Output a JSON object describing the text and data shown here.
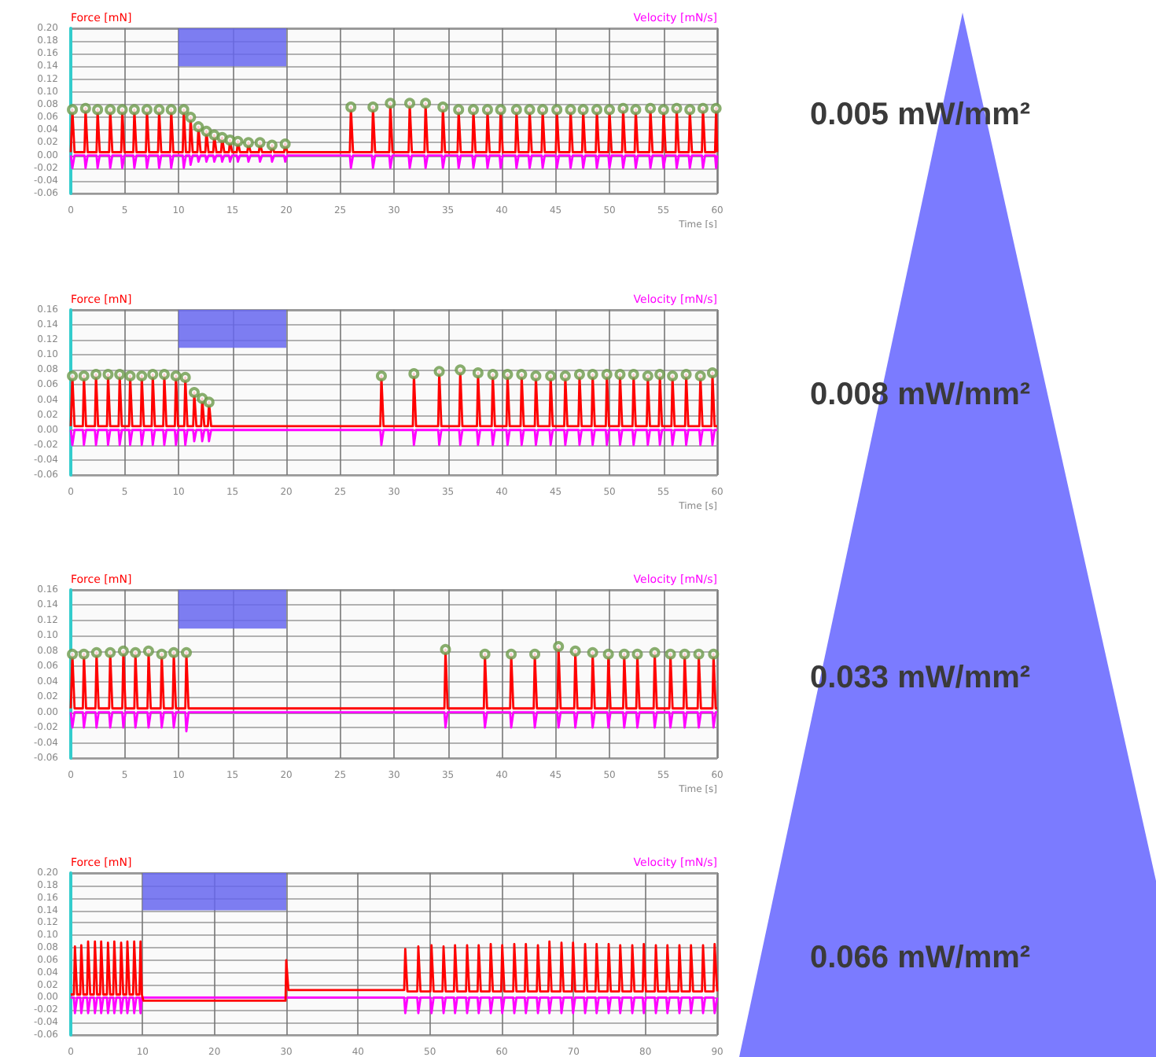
{
  "chart_data": [
    {
      "type": "line",
      "xlabel": "Time [s]",
      "ylabel": "Force [mN]",
      "y2label": "Velocity [mN/s]",
      "annotations": [
        "0.005 mW/mm²"
      ],
      "grid": true,
      "xlim": [
        0,
        60
      ],
      "xticks": [
        0,
        5,
        10,
        15,
        20,
        25,
        30,
        35,
        40,
        45,
        50,
        55,
        60
      ],
      "ylim": [
        -0.06,
        0.2
      ],
      "yticks": [
        {
          "value": -0.06,
          "label": "-0.06"
        },
        {
          "value": -0.04,
          "label": "-0.04"
        },
        {
          "value": -0.02,
          "label": "-0.02"
        },
        {
          "value": 0,
          "label": "0.00"
        },
        {
          "value": 0.02,
          "label": "0.02"
        },
        {
          "value": 0.04,
          "label": "0.04"
        },
        {
          "value": 0.06,
          "label": "0.06"
        },
        {
          "value": 0.08,
          "label": "0.08"
        },
        {
          "value": 0.1,
          "label": "0.10"
        },
        {
          "value": 0.12,
          "label": "0.12"
        },
        {
          "value": 0.14,
          "label": "0.14"
        },
        {
          "value": 0.16,
          "label": "0.16"
        },
        {
          "value": 0.18,
          "label": "0.18"
        },
        {
          "value": 0.2,
          "label": "0.20"
        }
      ],
      "bands": [
        {
          "axis": "x",
          "from": 10,
          "to": 20,
          "color": "#6666ee"
        }
      ],
      "x": [
        0,
        0.05,
        0.15,
        0.35,
        1.27,
        1.37,
        1.57,
        2.39,
        2.49,
        2.69,
        3.56,
        3.66,
        3.86,
        4.68,
        4.78,
        4.98,
        5.8,
        5.9,
        6.1,
        6.97,
        7.07,
        7.27,
        8.1,
        8.2,
        8.4,
        9.22,
        9.32,
        9.52,
        10.39,
        10.49,
        10.69,
        11.02,
        11.12,
        11.32,
        11.75,
        11.85,
        12.05,
        12.49,
        12.59,
        12.79,
        13.22,
        13.32,
        13.52,
        13.95,
        14.05,
        14.25,
        14.68,
        14.78,
        14.98,
        15.41,
        15.51,
        15.71,
        16.39,
        16.49,
        16.69,
        17.46,
        17.56,
        17.76,
        18.58,
        18.68,
        18.88,
        19.8,
        19.9,
        20.1,
        25.9,
        26,
        26.2,
        27.95,
        28.05,
        28.25,
        29.56,
        29.66,
        29.86,
        31.36,
        31.46,
        31.66,
        32.83,
        32.93,
        33.13,
        34.44,
        34.54,
        34.74,
        35.9,
        36,
        36.2,
        37.27,
        37.37,
        37.57,
        38.58,
        38.68,
        38.88,
        39.8,
        39.9,
        40.1,
        41.27,
        41.37,
        41.57,
        42.49,
        42.59,
        42.79,
        43.7,
        43.8,
        44,
        45.02,
        45.12,
        45.32,
        46.29,
        46.39,
        46.59,
        47.46,
        47.56,
        47.76,
        48.73,
        48.83,
        49.03,
        49.9,
        50,
        50.2,
        51.17,
        51.27,
        51.47,
        52.34,
        52.44,
        52.64,
        53.7,
        53.8,
        54,
        54.92,
        55.02,
        55.22,
        56.14,
        56.24,
        56.44,
        57.36,
        57.46,
        57.66,
        58.58,
        58.68,
        58.88,
        59.8,
        59.9,
        60
      ],
      "series": [
        {
          "type": "scatter",
          "color": "#6b9a4a",
          "marker": "circle",
          "x": [
            0.15,
            1.37,
            2.49,
            3.66,
            4.78,
            5.9,
            7.07,
            8.2,
            9.32,
            10.49,
            11.12,
            11.85,
            12.59,
            13.32,
            14.05,
            14.78,
            15.51,
            16.49,
            17.56,
            18.68,
            19.9,
            26,
            28.05,
            29.66,
            31.46,
            32.93,
            34.54,
            36,
            37.37,
            38.68,
            39.9,
            41.37,
            42.59,
            43.8,
            45.12,
            46.39,
            47.56,
            48.83,
            50,
            51.27,
            52.44,
            53.8,
            55.02,
            56.24,
            57.46,
            58.68,
            59.9
          ],
          "values": [
            0.072,
            0.074,
            0.072,
            0.072,
            0.072,
            0.072,
            0.072,
            0.072,
            0.072,
            0.072,
            0.06,
            0.045,
            0.038,
            0.032,
            0.028,
            0.024,
            0.022,
            0.02,
            0.02,
            0.016,
            0.018,
            0.076,
            0.076,
            0.082,
            0.082,
            0.082,
            0.076,
            0.072,
            0.072,
            0.072,
            0.072,
            0.072,
            0.072,
            0.072,
            0.072,
            0.072,
            0.072,
            0.072,
            0.072,
            0.074,
            0.072,
            0.074,
            0.072,
            0.074,
            0.072,
            0.074,
            0.074
          ]
        },
        {
          "color": "#ff0000",
          "values": [
            0.005,
            0.005,
            0.072,
            0.005,
            0.005,
            0.074,
            0.005,
            0.005,
            0.072,
            0.005,
            0.005,
            0.072,
            0.005,
            0.005,
            0.072,
            0.005,
            0.005,
            0.072,
            0.005,
            0.005,
            0.072,
            0.005,
            0.005,
            0.072,
            0.005,
            0.005,
            0.072,
            0.005,
            0.005,
            0.072,
            0.005,
            0.005,
            0.06,
            0.005,
            0.005,
            0.045,
            0.005,
            0.005,
            0.038,
            0.005,
            0.005,
            0.032,
            0.005,
            0.005,
            0.028,
            0.005,
            0.005,
            0.024,
            0.005,
            0.005,
            0.022,
            0.005,
            0.005,
            0.02,
            0.005,
            0.005,
            0.02,
            0.005,
            0.005,
            0.016,
            0.005,
            0.005,
            0.018,
            0.005,
            0.005,
            0.076,
            0.005,
            0.005,
            0.076,
            0.005,
            0.005,
            0.082,
            0.005,
            0.005,
            0.082,
            0.005,
            0.005,
            0.082,
            0.005,
            0.005,
            0.076,
            0.005,
            0.005,
            0.072,
            0.005,
            0.005,
            0.072,
            0.005,
            0.005,
            0.072,
            0.005,
            0.005,
            0.072,
            0.005,
            0.005,
            0.072,
            0.005,
            0.005,
            0.072,
            0.005,
            0.005,
            0.072,
            0.005,
            0.005,
            0.072,
            0.005,
            0.005,
            0.072,
            0.005,
            0.005,
            0.072,
            0.005,
            0.005,
            0.072,
            0.005,
            0.005,
            0.072,
            0.005,
            0.005,
            0.074,
            0.005,
            0.005,
            0.072,
            0.005,
            0.005,
            0.074,
            0.005,
            0.005,
            0.072,
            0.005,
            0.005,
            0.074,
            0.005,
            0.005,
            0.072,
            0.005,
            0.005,
            0.074,
            0.005,
            0.005,
            0.074,
            0.005
          ]
        },
        {
          "color": "#ff00ff",
          "marker": "none",
          "values": [
            0,
            0,
            -0.02,
            0,
            0,
            -0.02,
            0,
            0,
            -0.02,
            0,
            0,
            -0.02,
            0,
            0,
            -0.02,
            0,
            0,
            -0.02,
            0,
            0,
            -0.02,
            0,
            0,
            -0.02,
            0,
            0,
            -0.02,
            0,
            0,
            -0.02,
            0,
            0,
            -0.015,
            0,
            0,
            -0.01,
            0,
            0,
            -0.01,
            0,
            0,
            -0.01,
            0,
            0,
            -0.01,
            0,
            0,
            -0.01,
            0,
            0,
            -0.01,
            0,
            0,
            -0.01,
            0,
            0,
            -0.01,
            0,
            0,
            -0.01,
            0,
            0,
            -0.01,
            0,
            0,
            -0.02,
            0,
            0,
            -0.02,
            0,
            0,
            -0.02,
            0,
            0,
            -0.02,
            0,
            0,
            -0.02,
            0,
            0,
            -0.02,
            0,
            0,
            -0.02,
            0,
            0,
            -0.02,
            0,
            0,
            -0.02,
            0,
            0,
            -0.02,
            0,
            0,
            -0.02,
            0,
            0,
            -0.02,
            0,
            0,
            -0.02,
            0,
            0,
            -0.02,
            0,
            0,
            -0.02,
            0,
            0,
            -0.02,
            0,
            0,
            -0.02,
            0,
            0,
            -0.02,
            0,
            0,
            -0.02,
            0,
            0,
            -0.02,
            0,
            0,
            -0.02,
            0,
            0,
            -0.02,
            0,
            0,
            -0.02,
            0,
            0,
            -0.02,
            0,
            0,
            -0.02,
            0,
            0,
            -0.02,
            0
          ]
        }
      ]
    },
    {
      "type": "line",
      "xlabel": "Time [s]",
      "ylabel": "Force [mN]",
      "y2label": "Velocity [mN/s]",
      "annotations": [
        "0.008 mW/mm²"
      ],
      "grid": true,
      "xlim": [
        0,
        60
      ],
      "xticks": [
        0,
        5,
        10,
        15,
        20,
        25,
        30,
        35,
        40,
        45,
        50,
        55,
        60
      ],
      "ylim": [
        -0.06,
        0.16
      ],
      "yticks": [
        {
          "value": -0.06,
          "label": "-0.06"
        },
        {
          "value": -0.04,
          "label": "-0.04"
        },
        {
          "value": -0.02,
          "label": "-0.02"
        },
        {
          "value": 0,
          "label": "0.00"
        },
        {
          "value": 0.02,
          "label": "0.02"
        },
        {
          "value": 0.04,
          "label": "0.04"
        },
        {
          "value": 0.06,
          "label": "0.06"
        },
        {
          "value": 0.08,
          "label": "0.08"
        },
        {
          "value": 0.1,
          "label": "0.10"
        },
        {
          "value": 0.12,
          "label": "0.12"
        },
        {
          "value": 0.14,
          "label": "0.14"
        },
        {
          "value": 0.16,
          "label": "0.16"
        }
      ],
      "bands": [
        {
          "axis": "x",
          "from": 10,
          "to": 20,
          "color": "#6666ee"
        }
      ],
      "x": [
        0,
        0.05,
        0.15,
        0.35,
        1.12,
        1.22,
        1.42,
        2.24,
        2.34,
        2.54,
        3.36,
        3.46,
        3.66,
        4.44,
        4.54,
        4.74,
        5.41,
        5.51,
        5.71,
        6.49,
        6.59,
        6.79,
        7.51,
        7.61,
        7.81,
        8.58,
        8.68,
        8.88,
        9.66,
        9.76,
        9.96,
        10.53,
        10.63,
        10.83,
        11.36,
        11.46,
        11.66,
        12.1,
        12.2,
        12.4,
        12.73,
        12.83,
        13.03,
        28.73,
        28.83,
        29.03,
        31.75,
        31.85,
        32.05,
        34.1,
        34.2,
        34.4,
        36.05,
        36.15,
        36.35,
        37.7,
        37.8,
        38,
        39.07,
        39.17,
        39.37,
        40.44,
        40.54,
        40.74,
        41.75,
        41.85,
        42.05,
        43.07,
        43.17,
        43.37,
        44.44,
        44.54,
        44.74,
        45.8,
        45.9,
        46.1,
        47.12,
        47.22,
        47.42,
        48.34,
        48.44,
        48.64,
        49.66,
        49.76,
        49.96,
        50.88,
        50.98,
        51.18,
        52.14,
        52.24,
        52.44,
        53.46,
        53.56,
        53.76,
        54.58,
        54.68,
        54.88,
        55.75,
        55.85,
        56.05,
        57.02,
        57.12,
        57.32,
        58.34,
        58.44,
        58.64,
        59.46,
        59.56,
        59.76,
        60
      ],
      "series": [
        {
          "type": "scatter",
          "color": "#6b9a4a",
          "marker": "circle",
          "x": [
            0.15,
            1.22,
            2.34,
            3.46,
            4.54,
            5.51,
            6.59,
            7.61,
            8.68,
            9.76,
            10.63,
            11.46,
            12.2,
            12.83,
            28.83,
            31.85,
            34.2,
            36.15,
            37.8,
            39.17,
            40.54,
            41.85,
            43.17,
            44.54,
            45.9,
            47.22,
            48.44,
            49.76,
            50.98,
            52.24,
            53.56,
            54.68,
            55.85,
            57.12,
            58.44,
            59.56
          ],
          "values": [
            0.072,
            0.072,
            0.074,
            0.074,
            0.074,
            0.072,
            0.072,
            0.074,
            0.074,
            0.072,
            0.07,
            0.05,
            0.042,
            0.037,
            0.072,
            0.075,
            0.078,
            0.08,
            0.076,
            0.074,
            0.074,
            0.074,
            0.072,
            0.072,
            0.072,
            0.074,
            0.074,
            0.074,
            0.074,
            0.074,
            0.072,
            0.074,
            0.072,
            0.074,
            0.072,
            0.076
          ]
        },
        {
          "color": "#ff0000",
          "values": [
            0.005,
            0.005,
            0.072,
            0.005,
            0.005,
            0.072,
            0.005,
            0.005,
            0.074,
            0.005,
            0.005,
            0.074,
            0.005,
            0.005,
            0.074,
            0.005,
            0.005,
            0.072,
            0.005,
            0.005,
            0.072,
            0.005,
            0.005,
            0.074,
            0.005,
            0.005,
            0.074,
            0.005,
            0.005,
            0.072,
            0.005,
            0.005,
            0.07,
            0.005,
            0.005,
            0.05,
            0.005,
            0.005,
            0.042,
            0.005,
            0.005,
            0.037,
            0.005,
            0.005,
            0.072,
            0.005,
            0.005,
            0.075,
            0.005,
            0.005,
            0.078,
            0.005,
            0.005,
            0.08,
            0.005,
            0.005,
            0.076,
            0.005,
            0.005,
            0.074,
            0.005,
            0.005,
            0.074,
            0.005,
            0.005,
            0.074,
            0.005,
            0.005,
            0.072,
            0.005,
            0.005,
            0.072,
            0.005,
            0.005,
            0.072,
            0.005,
            0.005,
            0.074,
            0.005,
            0.005,
            0.074,
            0.005,
            0.005,
            0.074,
            0.005,
            0.005,
            0.074,
            0.005,
            0.005,
            0.074,
            0.005,
            0.005,
            0.072,
            0.005,
            0.005,
            0.074,
            0.005,
            0.005,
            0.072,
            0.005,
            0.005,
            0.074,
            0.005,
            0.005,
            0.072,
            0.005,
            0.005,
            0.076,
            0.005,
            0.005
          ]
        },
        {
          "color": "#ff00ff",
          "marker": "none",
          "values": [
            0,
            0,
            -0.02,
            0,
            0,
            -0.02,
            0,
            0,
            -0.02,
            0,
            0,
            -0.02,
            0,
            0,
            -0.02,
            0,
            0,
            -0.02,
            0,
            0,
            -0.02,
            0,
            0,
            -0.02,
            0,
            0,
            -0.02,
            0,
            0,
            -0.02,
            0,
            0,
            -0.02,
            0,
            0,
            -0.015,
            0,
            0,
            -0.015,
            0,
            0,
            -0.015,
            0,
            0,
            -0.02,
            0,
            0,
            -0.02,
            0,
            0,
            -0.02,
            0,
            0,
            -0.02,
            0,
            0,
            -0.02,
            0,
            0,
            -0.02,
            0,
            0,
            -0.02,
            0,
            0,
            -0.02,
            0,
            0,
            -0.02,
            0,
            0,
            -0.02,
            0,
            0,
            -0.02,
            0,
            0,
            -0.02,
            0,
            0,
            -0.02,
            0,
            0,
            -0.02,
            0,
            0,
            -0.02,
            0,
            0,
            -0.02,
            0,
            0,
            -0.02,
            0,
            0,
            -0.02,
            0,
            0,
            -0.02,
            0,
            0,
            -0.02,
            0,
            0,
            -0.02,
            0,
            0,
            -0.02,
            0,
            0
          ]
        }
      ]
    },
    {
      "type": "line",
      "xlabel": "Time [s]",
      "ylabel": "Force [mN]",
      "y2label": "Velocity [mN/s]",
      "annotations": [
        "0.033 mW/mm²"
      ],
      "grid": true,
      "xlim": [
        0,
        60
      ],
      "xticks": [
        0,
        5,
        10,
        15,
        20,
        25,
        30,
        35,
        40,
        45,
        50,
        55,
        60
      ],
      "ylim": [
        -0.06,
        0.16
      ],
      "yticks": [
        {
          "value": -0.06,
          "label": "-0.06"
        },
        {
          "value": -0.04,
          "label": "-0.04"
        },
        {
          "value": -0.02,
          "label": "-0.02"
        },
        {
          "value": 0,
          "label": "0.00"
        },
        {
          "value": 0.02,
          "label": "0.02"
        },
        {
          "value": 0.04,
          "label": "0.04"
        },
        {
          "value": 0.06,
          "label": "0.06"
        },
        {
          "value": 0.08,
          "label": "0.08"
        },
        {
          "value": 0.1,
          "label": "0.10"
        },
        {
          "value": 0.12,
          "label": "0.12"
        },
        {
          "value": 0.14,
          "label": "0.14"
        },
        {
          "value": 0.16,
          "label": "0.16"
        }
      ],
      "bands": [
        {
          "axis": "x",
          "from": 10,
          "to": 20,
          "color": "#6666ee"
        }
      ],
      "x": [
        0,
        0.05,
        0.15,
        0.35,
        1.12,
        1.22,
        1.42,
        2.29,
        2.39,
        2.59,
        3.56,
        3.66,
        3.86,
        4.78,
        4.88,
        5.08,
        5.9,
        6,
        6.2,
        7.12,
        7.22,
        7.42,
        8.34,
        8.44,
        8.64,
        9.46,
        9.56,
        9.76,
        10.63,
        10.73,
        10.93,
        34.68,
        34.78,
        34.98,
        38.34,
        38.44,
        38.64,
        40.78,
        40.88,
        41.08,
        42.97,
        43.07,
        43.27,
        45.17,
        45.27,
        45.47,
        46.73,
        46.83,
        47.03,
        48.34,
        48.44,
        48.64,
        49.8,
        49.9,
        50.1,
        51.27,
        51.37,
        51.57,
        52.49,
        52.59,
        52.79,
        54.1,
        54.2,
        54.4,
        55.56,
        55.66,
        55.86,
        56.88,
        56.98,
        57.18,
        58.19,
        58.29,
        58.49,
        59.56,
        59.66,
        59.86,
        60
      ],
      "series": [
        {
          "type": "scatter",
          "color": "#6b9a4a",
          "marker": "circle",
          "x": [
            0.15,
            1.22,
            2.39,
            3.66,
            4.88,
            6,
            7.22,
            8.44,
            9.56,
            10.73,
            34.78,
            38.44,
            40.88,
            43.07,
            45.27,
            46.83,
            48.44,
            49.9,
            51.37,
            52.59,
            54.2,
            55.66,
            56.98,
            58.29,
            59.66
          ],
          "values": [
            0.076,
            0.076,
            0.078,
            0.078,
            0.08,
            0.078,
            0.08,
            0.076,
            0.078,
            0.078,
            0.082,
            0.076,
            0.076,
            0.076,
            0.086,
            0.08,
            0.078,
            0.076,
            0.076,
            0.076,
            0.078,
            0.076,
            0.076,
            0.076,
            0.076
          ]
        },
        {
          "color": "#ff0000",
          "values": [
            0.005,
            0.005,
            0.076,
            0.005,
            0.005,
            0.076,
            0.005,
            0.005,
            0.078,
            0.005,
            0.005,
            0.078,
            0.005,
            0.005,
            0.08,
            0.005,
            0.005,
            0.078,
            0.005,
            0.005,
            0.08,
            0.005,
            0.005,
            0.076,
            0.005,
            0.005,
            0.078,
            0.005,
            0.005,
            0.078,
            0.005,
            0.005,
            0.082,
            0.005,
            0.005,
            0.076,
            0.005,
            0.005,
            0.076,
            0.005,
            0.005,
            0.076,
            0.005,
            0.005,
            0.086,
            0.005,
            0.005,
            0.08,
            0.005,
            0.005,
            0.078,
            0.005,
            0.005,
            0.076,
            0.005,
            0.005,
            0.076,
            0.005,
            0.005,
            0.076,
            0.005,
            0.005,
            0.078,
            0.005,
            0.005,
            0.076,
            0.005,
            0.005,
            0.076,
            0.005,
            0.005,
            0.076,
            0.005,
            0.005,
            0.076,
            0.005,
            0.005
          ]
        },
        {
          "color": "#ff00ff",
          "marker": "none",
          "values": [
            0,
            0,
            -0.02,
            0,
            0,
            -0.02,
            0,
            0,
            -0.02,
            0,
            0,
            -0.02,
            0,
            0,
            -0.02,
            0,
            0,
            -0.02,
            0,
            0,
            -0.02,
            0,
            0,
            -0.02,
            0,
            0,
            -0.02,
            0,
            0,
            -0.025,
            0,
            0,
            -0.02,
            0,
            0,
            -0.02,
            0,
            0,
            -0.02,
            0,
            0,
            -0.02,
            0,
            0,
            -0.02,
            0,
            0,
            -0.02,
            0,
            0,
            -0.02,
            0,
            0,
            -0.02,
            0,
            0,
            -0.02,
            0,
            0,
            -0.02,
            0,
            0,
            -0.02,
            0,
            0,
            -0.02,
            0,
            0,
            -0.02,
            0,
            0,
            -0.02,
            0,
            0,
            -0.02,
            0,
            0
          ]
        }
      ]
    },
    {
      "type": "line",
      "ylabel": "Force [mN]",
      "y2label": "Velocity [mN/s]",
      "annotations": [
        "0.066 mW/mm²"
      ],
      "grid": true,
      "xlim": [
        0,
        90
      ],
      "xticks": [
        0,
        10,
        20,
        30,
        40,
        50,
        60,
        70,
        80,
        90
      ],
      "ylim": [
        -0.06,
        0.2
      ],
      "yticks": [
        {
          "value": -0.06,
          "label": "-0.06"
        },
        {
          "value": -0.04,
          "label": "-0.04"
        },
        {
          "value": -0.02,
          "label": "-0.02"
        },
        {
          "value": 0,
          "label": "0.00"
        },
        {
          "value": 0.02,
          "label": "0.02"
        },
        {
          "value": 0.04,
          "label": "0.04"
        },
        {
          "value": 0.06,
          "label": "0.06"
        },
        {
          "value": 0.08,
          "label": "0.08"
        },
        {
          "value": 0.1,
          "label": "0.10"
        },
        {
          "value": 0.12,
          "label": "0.12"
        },
        {
          "value": 0.14,
          "label": "0.14"
        },
        {
          "value": 0.16,
          "label": "0.16"
        },
        {
          "value": 0.18,
          "label": "0.18"
        },
        {
          "value": 0.2,
          "label": "0.20"
        }
      ],
      "bands": [
        {
          "axis": "x",
          "from": 10,
          "to": 30,
          "color": "#6666ee"
        }
      ],
      "x": [
        0,
        0.43,
        0.58,
        0.88,
        1.31,
        1.46,
        1.76,
        2.26,
        2.41,
        2.71,
        3.21,
        3.36,
        3.66,
        4.08,
        4.23,
        4.53,
        5.03,
        5.18,
        5.48,
        5.91,
        6.06,
        6.36,
        6.86,
        7.01,
        7.31,
        7.73,
        7.88,
        8.18,
        8.68,
        8.83,
        9.13,
        9.56,
        9.71,
        9.9,
        10.1,
        29.9,
        30,
        30.3,
        46.42,
        46.57,
        46.87,
        48.24,
        48.39,
        48.69,
        50.07,
        50.22,
        50.52,
        51.75,
        51.9,
        52.2,
        53.35,
        53.5,
        53.8,
        55.03,
        55.18,
        55.48,
        56.64,
        56.79,
        57.09,
        58.32,
        58.47,
        58.77,
        59.92,
        60.07,
        60.37,
        61.6,
        61.75,
        62.05,
        63.21,
        63.36,
        63.66,
        64.89,
        65.04,
        65.34,
        66.49,
        66.64,
        66.94,
        68.17,
        68.32,
        68.62,
        69.78,
        69.93,
        70.23,
        71.46,
        71.61,
        71.91,
        73.06,
        73.21,
        73.51,
        74.74,
        74.89,
        75.19,
        76.35,
        76.5,
        76.8,
        78.03,
        78.18,
        78.48,
        79.63,
        79.78,
        80.08,
        81.31,
        81.46,
        81.76,
        82.92,
        83.07,
        83.37,
        84.59,
        84.74,
        85.04,
        86.2,
        86.35,
        86.65,
        87.88,
        88.03,
        88.33,
        89.49,
        89.64,
        90
      ],
      "series": [
        {
          "color": "#ff0000",
          "marker": "none",
          "values": [
            0.005,
            0.005,
            0.082,
            0.005,
            0.005,
            0.084,
            0.005,
            0.005,
            0.09,
            0.005,
            0.005,
            0.09,
            0.005,
            0.005,
            0.09,
            0.005,
            0.005,
            0.088,
            0.005,
            0.005,
            0.09,
            0.005,
            0.005,
            0.088,
            0.005,
            0.005,
            0.09,
            0.005,
            0.005,
            0.09,
            0.005,
            0.005,
            0.09,
            0.005,
            -0.005,
            -0.005,
            0.06,
            0.012,
            0.012,
            0.078,
            0.01,
            0.01,
            0.082,
            0.01,
            0.01,
            0.084,
            0.01,
            0.01,
            0.082,
            0.01,
            0.01,
            0.084,
            0.01,
            0.01,
            0.084,
            0.01,
            0.01,
            0.084,
            0.01,
            0.01,
            0.086,
            0.01,
            0.01,
            0.084,
            0.01,
            0.01,
            0.086,
            0.01,
            0.01,
            0.086,
            0.01,
            0.01,
            0.084,
            0.01,
            0.01,
            0.09,
            0.01,
            0.01,
            0.088,
            0.01,
            0.01,
            0.088,
            0.01,
            0.01,
            0.086,
            0.01,
            0.01,
            0.086,
            0.01,
            0.01,
            0.086,
            0.01,
            0.01,
            0.084,
            0.01,
            0.01,
            0.084,
            0.01,
            0.01,
            0.086,
            0.01,
            0.01,
            0.084,
            0.01,
            0.01,
            0.084,
            0.01,
            0.01,
            0.084,
            0.01,
            0.01,
            0.084,
            0.01,
            0.01,
            0.084,
            0.01,
            0.01,
            0.086,
            0.01
          ]
        },
        {
          "color": "#ff00ff",
          "marker": "none",
          "values": [
            0,
            0,
            -0.025,
            0,
            0,
            -0.025,
            0,
            0,
            -0.025,
            0,
            0,
            -0.025,
            0,
            0,
            -0.025,
            0,
            0,
            -0.025,
            0,
            0,
            -0.025,
            0,
            0,
            -0.025,
            0,
            0,
            -0.025,
            0,
            0,
            -0.025,
            0,
            0,
            -0.025,
            0,
            0,
            0,
            0,
            0,
            0,
            -0.025,
            0,
            0,
            -0.025,
            0,
            0,
            -0.025,
            0,
            0,
            -0.025,
            0,
            0,
            -0.025,
            0,
            0,
            -0.025,
            0,
            0,
            -0.025,
            0,
            0,
            -0.025,
            0,
            0,
            -0.025,
            0,
            0,
            -0.025,
            0,
            0,
            -0.025,
            0,
            0,
            -0.025,
            0,
            0,
            -0.025,
            0,
            0,
            -0.025,
            0,
            0,
            -0.025,
            0,
            0,
            -0.025,
            0,
            0,
            -0.025,
            0,
            0,
            -0.025,
            0,
            0,
            -0.025,
            0,
            0,
            -0.025,
            0,
            0,
            -0.025,
            0,
            0,
            -0.025,
            0,
            0,
            -0.025,
            0,
            0,
            -0.025,
            0,
            0,
            -0.025,
            0,
            0,
            -0.025,
            0,
            0,
            -0.025,
            0
          ]
        }
      ]
    }
  ]
}
